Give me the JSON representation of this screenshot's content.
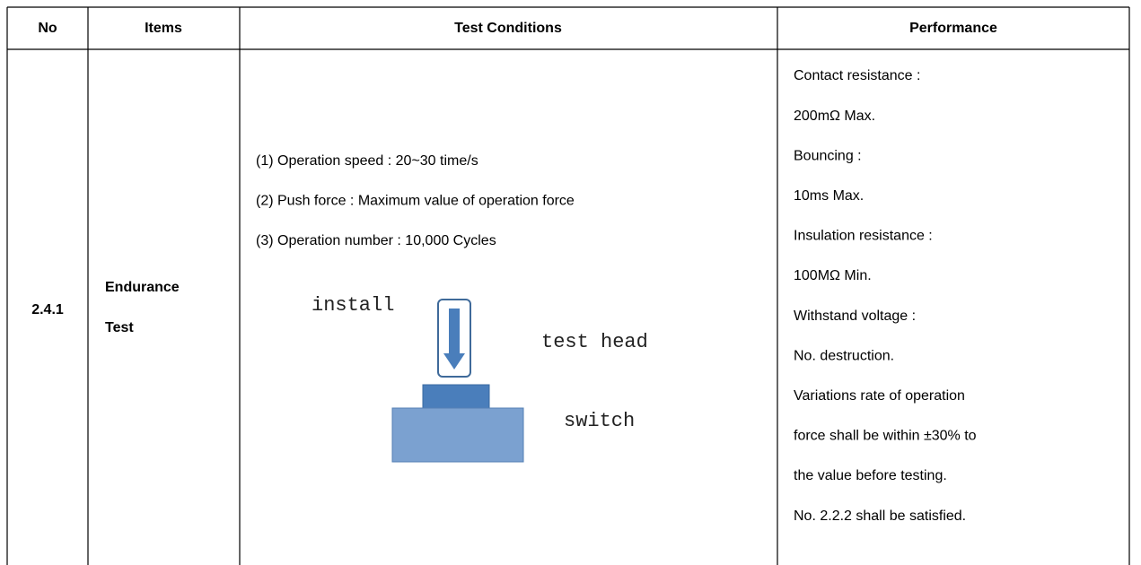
{
  "table": {
    "header": [
      "No",
      "Items",
      "Test Conditions",
      "Performance"
    ],
    "rows": [
      {
        "no": "2.4.1",
        "items": [
          "Endurance",
          "Test"
        ],
        "test_conditions": [
          "(1) Operation speed : 20~30 time/s",
          "(2) Push force : Maximum value of operation force",
          "(3) Operation number : 10,000 Cycles"
        ],
        "diagram": {
          "install": "install",
          "test_head": "test head",
          "switch": "switch"
        },
        "performance": [
          "Contact resistance :",
          "200mΩ Max.",
          "Bouncing :",
          "10ms Max.",
          "Insulation resistance :",
          "100MΩ Min.",
          "Withstand voltage :",
          "No. destruction.",
          "Variations rate of operation",
          "force shall be within ±30% to",
          "the value before testing.",
          "No. 2.2.2 shall be satisfied."
        ]
      }
    ]
  }
}
